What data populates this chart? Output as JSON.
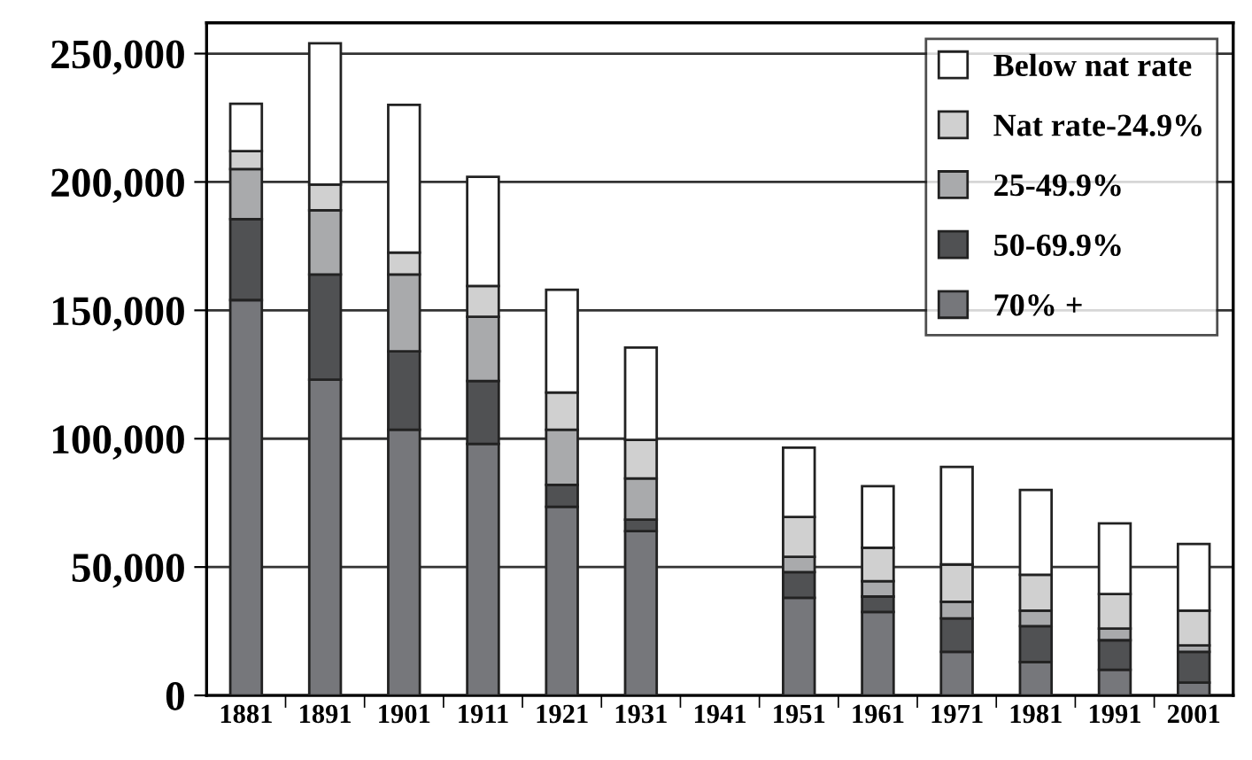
{
  "chart_data": {
    "type": "bar",
    "stacked": true,
    "categories": [
      "1881",
      "1891",
      "1901",
      "1911",
      "1921",
      "1931",
      "1941",
      "1951",
      "1961",
      "1971",
      "1981",
      "1991",
      "2001"
    ],
    "series": [
      {
        "name": "70% +",
        "color": "#76777b",
        "values": [
          154000,
          123000,
          103500,
          98000,
          73500,
          64000,
          null,
          38000,
          32500,
          17000,
          13000,
          10000,
          5000
        ]
      },
      {
        "name": "50-69.9%",
        "color": "#505153",
        "values": [
          31500,
          41000,
          30500,
          24500,
          8500,
          4500,
          null,
          10000,
          6000,
          13000,
          14000,
          11500,
          12000
        ]
      },
      {
        "name": "25-49.9%",
        "color": "#a9aaac",
        "values": [
          19500,
          25000,
          30000,
          25000,
          21500,
          16000,
          null,
          6000,
          6000,
          6500,
          6000,
          4500,
          2500
        ]
      },
      {
        "name": "Nat rate-24.9%",
        "color": "#d0d0d0",
        "values": [
          7000,
          10000,
          8500,
          12000,
          14500,
          15000,
          null,
          15500,
          13000,
          14500,
          14000,
          13500,
          13500
        ]
      },
      {
        "name": "Below nat rate",
        "color": "#ffffff",
        "values": [
          18500,
          55000,
          57500,
          42500,
          40000,
          36000,
          null,
          27000,
          24000,
          38000,
          33000,
          27500,
          26000
        ]
      }
    ],
    "ylim": [
      0,
      262000
    ],
    "yticks": [
      {
        "value": 0,
        "label": "0"
      },
      {
        "value": 50000,
        "label": "50,000"
      },
      {
        "value": 100000,
        "label": "100,000"
      },
      {
        "value": 150000,
        "label": "150,000"
      },
      {
        "value": 200000,
        "label": "200,000"
      },
      {
        "value": 250000,
        "label": "250,000"
      }
    ],
    "grid": "y",
    "legend": "top right"
  }
}
